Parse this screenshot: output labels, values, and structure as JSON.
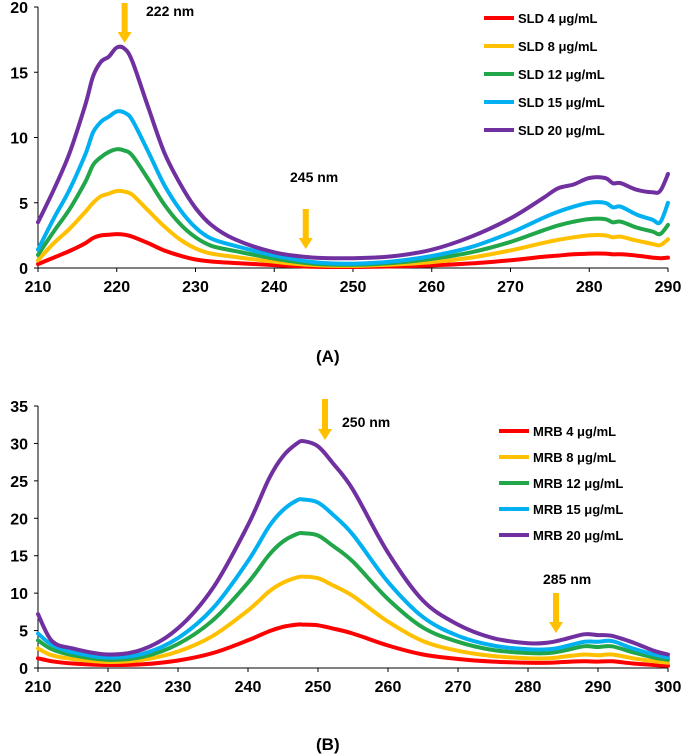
{
  "chart_data": [
    {
      "type": "line",
      "panel_label": "(A)",
      "xlim": [
        210,
        290
      ],
      "ylim": [
        0,
        20
      ],
      "x_ticks": [
        210,
        220,
        230,
        240,
        250,
        260,
        270,
        280,
        290
      ],
      "y_ticks": [
        0,
        5,
        10,
        15,
        20
      ],
      "legend_position": "top-right",
      "annotations": [
        {
          "label": "222 nm",
          "x": 221
        },
        {
          "label": "245 nm",
          "x": 244
        }
      ],
      "x": [
        210,
        212,
        214,
        216,
        217,
        218,
        219,
        220,
        221,
        222,
        224,
        226,
        228,
        230,
        232,
        235,
        240,
        245,
        250,
        255,
        260,
        265,
        270,
        274,
        276,
        278,
        280,
        282,
        283,
        284,
        286,
        288,
        289,
        290
      ],
      "series": [
        {
          "name": "SLD 4 μg/mL",
          "color": "#ff0000",
          "values": [
            0.3,
            0.8,
            1.3,
            1.9,
            2.3,
            2.5,
            2.55,
            2.6,
            2.55,
            2.4,
            1.9,
            1.35,
            0.95,
            0.65,
            0.5,
            0.38,
            0.22,
            0.1,
            0.08,
            0.12,
            0.2,
            0.35,
            0.6,
            0.85,
            0.95,
            1.05,
            1.1,
            1.1,
            1.05,
            1.05,
            0.95,
            0.8,
            0.75,
            0.8
          ]
        },
        {
          "name": "SLD 8 μg/mL",
          "color": "#ffc000",
          "values": [
            0.6,
            1.9,
            3.0,
            4.3,
            5.0,
            5.5,
            5.7,
            5.9,
            5.85,
            5.6,
            4.4,
            3.2,
            2.2,
            1.5,
            1.1,
            0.85,
            0.48,
            0.22,
            0.16,
            0.26,
            0.45,
            0.8,
            1.35,
            1.9,
            2.15,
            2.35,
            2.5,
            2.5,
            2.35,
            2.4,
            2.1,
            1.85,
            1.75,
            2.2
          ]
        },
        {
          "name": "SLD 12 μg/mL",
          "color": "#21a64a",
          "values": [
            1.0,
            2.8,
            4.5,
            6.6,
            7.9,
            8.5,
            8.9,
            9.1,
            9.0,
            8.6,
            6.8,
            4.9,
            3.4,
            2.35,
            1.7,
            1.3,
            0.72,
            0.33,
            0.25,
            0.38,
            0.7,
            1.2,
            2.0,
            2.85,
            3.25,
            3.55,
            3.75,
            3.75,
            3.5,
            3.55,
            3.1,
            2.8,
            2.6,
            3.3
          ]
        },
        {
          "name": "SLD 15 μg/mL",
          "color": "#00b0f0",
          "values": [
            1.4,
            3.8,
            6.0,
            8.7,
            10.4,
            11.2,
            11.6,
            12.0,
            11.9,
            11.3,
            8.9,
            6.4,
            4.5,
            3.1,
            2.25,
            1.7,
            0.95,
            0.45,
            0.33,
            0.5,
            0.92,
            1.6,
            2.7,
            3.8,
            4.3,
            4.7,
            5.0,
            5.0,
            4.65,
            4.7,
            4.1,
            3.7,
            3.5,
            5.0
          ]
        },
        {
          "name": "SLD 20 μg/mL",
          "color": "#7030a0",
          "values": [
            3.5,
            6.0,
            8.8,
            12.5,
            14.7,
            15.8,
            16.2,
            16.9,
            16.8,
            15.8,
            12.3,
            8.9,
            6.5,
            4.6,
            3.3,
            2.2,
            1.2,
            0.8,
            0.75,
            0.9,
            1.4,
            2.4,
            3.8,
            5.3,
            6.1,
            6.4,
            6.9,
            6.9,
            6.5,
            6.5,
            6.0,
            5.8,
            5.9,
            7.2
          ]
        }
      ]
    },
    {
      "type": "line",
      "panel_label": "(B)",
      "xlim": [
        210,
        300
      ],
      "ylim": [
        0,
        35
      ],
      "x_ticks": [
        210,
        220,
        230,
        240,
        250,
        260,
        270,
        280,
        290,
        300
      ],
      "y_ticks": [
        0,
        5,
        10,
        15,
        20,
        25,
        30,
        35
      ],
      "legend_position": "right",
      "annotations": [
        {
          "label": "250 nm",
          "x": 251
        },
        {
          "label": "285 nm",
          "x": 284
        }
      ],
      "x": [
        210,
        212,
        215,
        220,
        225,
        230,
        235,
        240,
        243,
        245,
        247,
        248,
        250,
        252,
        255,
        260,
        265,
        270,
        275,
        280,
        283,
        285,
        288,
        290,
        292,
        295,
        298,
        300
      ],
      "series": [
        {
          "name": "MRB 4 μg/mL",
          "color": "#ff0000",
          "values": [
            1.3,
            0.9,
            0.6,
            0.4,
            0.5,
            1.0,
            2.0,
            3.7,
            4.9,
            5.5,
            5.8,
            5.8,
            5.7,
            5.3,
            4.6,
            3.0,
            1.8,
            1.2,
            0.85,
            0.7,
            0.7,
            0.8,
            0.9,
            0.85,
            0.9,
            0.6,
            0.4,
            0.3
          ]
        },
        {
          "name": "MRB 8 μg/mL",
          "color": "#ffc000",
          "values": [
            2.6,
            1.7,
            1.2,
            0.8,
            1.1,
            2.2,
            4.3,
            7.7,
            10.2,
            11.4,
            12.1,
            12.2,
            12.0,
            11.1,
            9.6,
            6.2,
            3.6,
            2.3,
            1.6,
            1.3,
            1.3,
            1.5,
            1.8,
            1.7,
            1.8,
            1.3,
            0.9,
            0.7
          ]
        },
        {
          "name": "MRB 12 μg/mL",
          "color": "#21a64a",
          "values": [
            3.7,
            2.5,
            1.7,
            1.1,
            1.5,
            3.2,
            6.4,
            11.4,
            15.1,
            16.9,
            17.9,
            18.0,
            17.7,
            16.4,
            14.2,
            9.2,
            5.4,
            3.5,
            2.4,
            2.0,
            2.0,
            2.3,
            2.9,
            2.8,
            2.9,
            2.1,
            1.4,
            1.1
          ]
        },
        {
          "name": "MRB 15 μg/mL",
          "color": "#00b0f0",
          "values": [
            4.6,
            3.1,
            2.1,
            1.4,
            1.9,
            4.0,
            8.0,
            14.3,
            18.9,
            21.1,
            22.4,
            22.5,
            22.1,
            20.6,
            17.8,
            11.5,
            6.8,
            4.3,
            3.0,
            2.5,
            2.5,
            2.8,
            3.5,
            3.5,
            3.6,
            2.6,
            1.8,
            1.4
          ]
        },
        {
          "name": "MRB 20 μg/mL",
          "color": "#7030a0",
          "values": [
            7.2,
            3.6,
            2.6,
            1.8,
            2.5,
            5.3,
            10.7,
            19.1,
            25.3,
            28.3,
            30.0,
            30.3,
            29.6,
            27.5,
            23.8,
            15.4,
            9.0,
            5.8,
            4.0,
            3.3,
            3.4,
            3.8,
            4.5,
            4.4,
            4.3,
            3.4,
            2.3,
            1.8
          ]
        }
      ]
    }
  ]
}
